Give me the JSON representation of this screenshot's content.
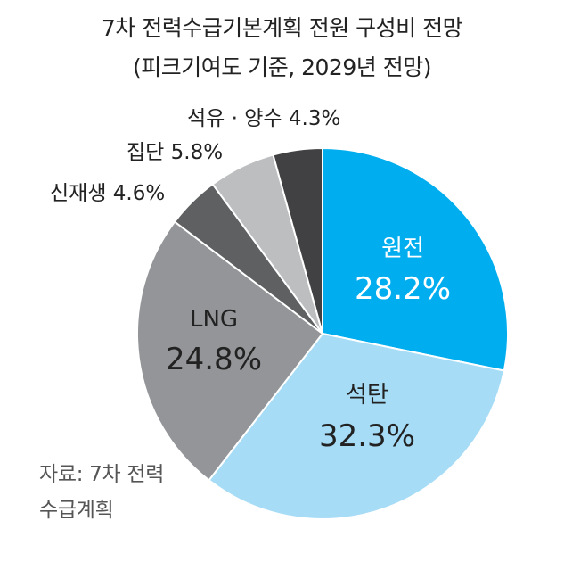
{
  "chart_data": {
    "type": "pie",
    "title": "7차 전력수급기본계획 전원 구성비 전망",
    "subtitle": "(피크기여도 기준, 2029년 전망)",
    "unit": "%",
    "slices": [
      {
        "name": "원전",
        "value": 28.2,
        "label": "28.2%",
        "color": "#00aeef",
        "text_color": "#ffffff",
        "label_position": "inside"
      },
      {
        "name": "석탄",
        "value": 32.3,
        "label": "32.3%",
        "color": "#a6dcf6",
        "text_color": "#222222",
        "label_position": "inside"
      },
      {
        "name": "LNG",
        "value": 24.8,
        "label": "24.8%",
        "color": "#939598",
        "text_color": "#222222",
        "label_position": "inside"
      },
      {
        "name": "신재생",
        "value": 4.6,
        "label": "4.6%",
        "color": "#5f6062",
        "text_color": "#222222",
        "label_position": "outside"
      },
      {
        "name": "집단",
        "value": 5.8,
        "label": "5.8%",
        "color": "#bcbec0",
        "text_color": "#222222",
        "label_position": "outside"
      },
      {
        "name": "석유 · 양수",
        "value": 4.3,
        "label": "4.3%",
        "color": "#414042",
        "text_color": "#222222",
        "label_position": "outside"
      }
    ]
  },
  "source": {
    "line1": "자료: 7차 전력",
    "line2": "수급계획"
  }
}
